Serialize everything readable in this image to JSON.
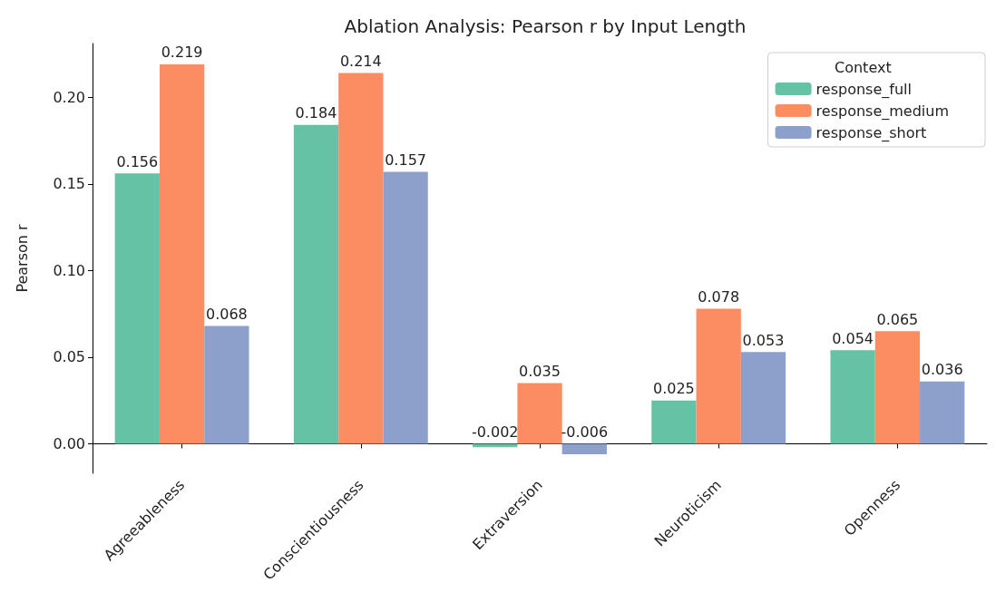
{
  "chart_data": {
    "type": "bar",
    "title": "Ablation Analysis: Pearson r by Input Length",
    "ylabel": "Pearson r",
    "legend_title": "Context",
    "categories": [
      "Agreeableness",
      "Conscientiousness",
      "Extraversion",
      "Neuroticism",
      "Openness"
    ],
    "series": [
      {
        "name": "response_full",
        "color": "#66c2a5",
        "values": [
          0.156,
          0.184,
          -0.002,
          0.025,
          0.054
        ]
      },
      {
        "name": "response_medium",
        "color": "#fc8d62",
        "values": [
          0.219,
          0.214,
          0.035,
          0.078,
          0.065
        ]
      },
      {
        "name": "response_short",
        "color": "#8da0cb",
        "values": [
          0.068,
          0.157,
          -0.006,
          0.053,
          0.036
        ]
      }
    ],
    "ylim": [
      -0.017,
      0.231
    ],
    "yticks": [
      {
        "value": 0,
        "label": "0.00"
      },
      {
        "value": 0.05,
        "label": "0.05"
      },
      {
        "value": 0.1,
        "label": "0.10"
      },
      {
        "value": 0.15,
        "label": "0.15"
      },
      {
        "value": 0.2,
        "label": "0.20"
      }
    ],
    "data_labels": true,
    "legend": "top right",
    "grid": false
  }
}
